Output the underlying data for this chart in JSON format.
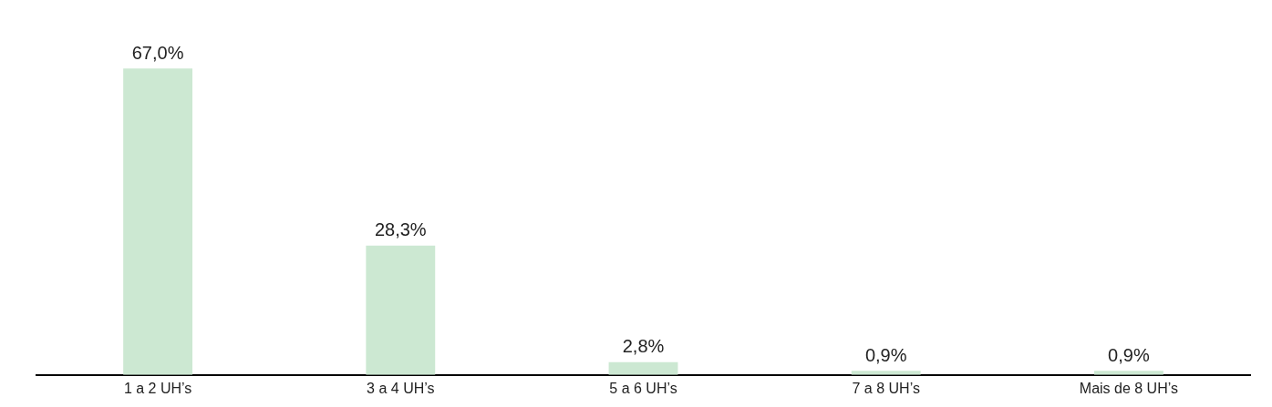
{
  "chart_data": {
    "type": "bar",
    "categories": [
      "1 a 2 UH’s",
      "3 a 4 UH’s",
      "5 a 6 UH’s",
      "7 a 8 UH’s",
      "Mais de 8 UH’s"
    ],
    "values": [
      67.0,
      28.3,
      2.8,
      0.9,
      0.9
    ],
    "value_labels": [
      "67,0%",
      "28,3%",
      "2,8%",
      "0,9%",
      "0,9%"
    ],
    "color": "#cce8d2",
    "tick_labels": "x",
    "grid": false,
    "legend": false
  }
}
